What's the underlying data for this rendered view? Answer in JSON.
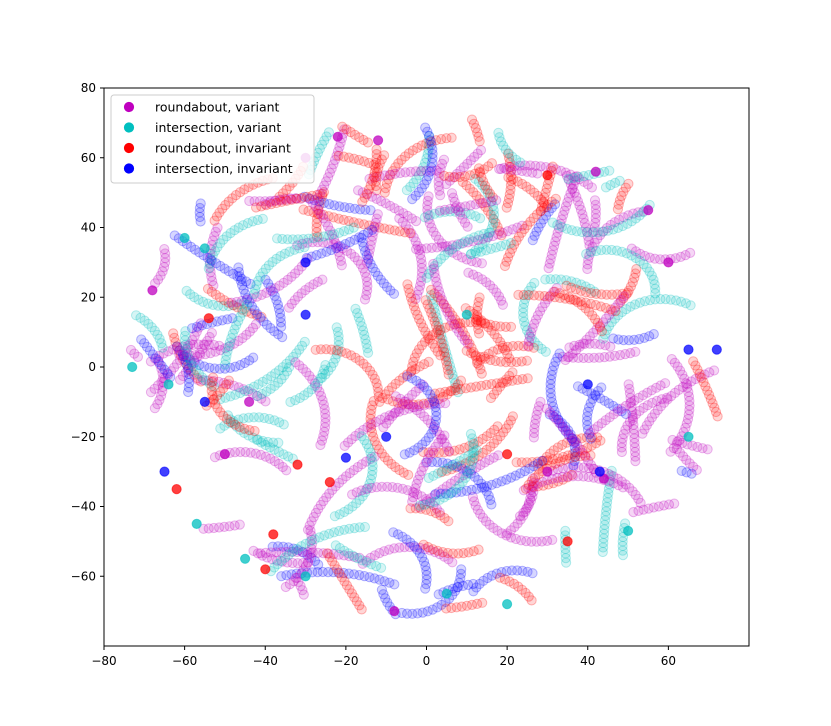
{
  "chart_data": {
    "type": "scatter",
    "title": "",
    "xlabel": "",
    "ylabel": "",
    "xlim": [
      -80,
      80
    ],
    "ylim": [
      -80,
      80
    ],
    "xticks": [
      -80,
      -60,
      -40,
      -20,
      0,
      20,
      40,
      60
    ],
    "yticks": [
      -60,
      -40,
      -20,
      0,
      20,
      40,
      60,
      80
    ],
    "grid": false,
    "legend_position": "top-left",
    "series": [
      {
        "name": "roundabout, variant",
        "color": "#bf00bf",
        "points": [
          [
            -22,
            66
          ],
          [
            -12,
            65
          ],
          [
            42,
            56
          ],
          [
            -8,
            -70
          ],
          [
            -68,
            22
          ],
          [
            -50,
            -25
          ],
          [
            -44,
            -10
          ],
          [
            55,
            45
          ],
          [
            60,
            30
          ],
          [
            -30,
            60
          ],
          [
            30,
            -30
          ],
          [
            44,
            -32
          ]
        ]
      },
      {
        "name": "intersection, variant",
        "color": "#00bfbf",
        "points": [
          [
            -73,
            0
          ],
          [
            -60,
            37
          ],
          [
            -55,
            34
          ],
          [
            -64,
            -5
          ],
          [
            -30,
            -60
          ],
          [
            5,
            -65
          ],
          [
            20,
            -68
          ],
          [
            10,
            15
          ],
          [
            50,
            -47
          ],
          [
            65,
            -20
          ],
          [
            -45,
            -55
          ],
          [
            -57,
            -45
          ]
        ]
      },
      {
        "name": "roundabout, invariant",
        "color": "#ff0000",
        "points": [
          [
            -54,
            14
          ],
          [
            -32,
            -28
          ],
          [
            -24,
            -33
          ],
          [
            -40,
            -58
          ],
          [
            -62,
            -35
          ],
          [
            30,
            55
          ],
          [
            -38,
            -48
          ],
          [
            20,
            -25
          ],
          [
            35,
            -50
          ]
        ]
      },
      {
        "name": "intersection, invariant",
        "color": "#0000ff",
        "points": [
          [
            -20,
            -26
          ],
          [
            -10,
            -20
          ],
          [
            -55,
            -10
          ],
          [
            -30,
            30
          ],
          [
            40,
            -5
          ],
          [
            43,
            -30
          ],
          [
            -65,
            -30
          ],
          [
            65,
            5
          ],
          [
            72,
            5
          ],
          [
            -30,
            15
          ]
        ]
      }
    ]
  }
}
